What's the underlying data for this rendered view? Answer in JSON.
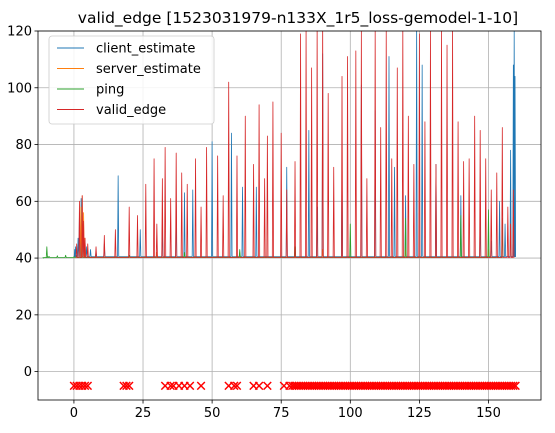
{
  "chart_data": {
    "type": "line",
    "title": "valid_edge [1523031979-n133X_1r5_loss-gemodel-1-10]",
    "xlabel": "",
    "ylabel": "",
    "xlim": [
      -13,
      169
    ],
    "ylim": [
      -10,
      120
    ],
    "x_ticks": [
      0,
      25,
      50,
      75,
      100,
      125,
      150
    ],
    "y_ticks": [
      0,
      20,
      40,
      60,
      80,
      100,
      120
    ],
    "x_tick_labels": [
      "0",
      "25",
      "50",
      "75",
      "100",
      "125",
      "150"
    ],
    "y_tick_labels": [
      "0",
      "20",
      "40",
      "60",
      "80",
      "100",
      "120"
    ],
    "grid": true,
    "legend_position": "top-left",
    "series": [
      {
        "name": "client_estimate",
        "color": "#1f77b4",
        "baseline": 40.5,
        "x": [
          0.3,
          0.6,
          1.0,
          1.5,
          2.0,
          2.6,
          3.1,
          3.6,
          4.5,
          6,
          8,
          11,
          16,
          24,
          32,
          37,
          40,
          43,
          50,
          57,
          61,
          66,
          77,
          85,
          88,
          90,
          97,
          104,
          109,
          114,
          116,
          120,
          124,
          126,
          131,
          140,
          147,
          151,
          154,
          156,
          158,
          159,
          159.3,
          159.6
        ],
        "y": [
          43,
          44,
          41,
          47,
          56,
          61,
          52,
          46,
          44,
          43,
          42,
          45,
          69,
          50,
          52,
          59,
          63,
          64,
          81,
          84,
          65,
          65,
          72,
          85,
          58,
          112,
          68,
          101,
          92,
          111,
          72,
          62,
          124,
          108,
          73,
          62,
          55,
          46,
          60,
          52,
          78,
          108,
          120,
          104
        ]
      },
      {
        "name": "server_estimate",
        "color": "#ff7f0e",
        "baseline": 40.3,
        "x": [
          2.5,
          3,
          3.5,
          4,
          30,
          60,
          90,
          120,
          150
        ],
        "y": [
          58,
          62,
          56,
          47,
          42,
          42,
          43,
          44,
          43
        ]
      },
      {
        "name": "ping",
        "color": "#2ca02c",
        "baseline": 40.2,
        "x": [
          -11,
          -10,
          -9.8,
          -9.5,
          -9,
          -6,
          -3,
          0,
          1,
          2,
          3,
          20,
          40,
          60,
          80,
          100,
          120,
          140,
          150,
          155
        ],
        "y": [
          40,
          40.3,
          44,
          40.5,
          40.6,
          40.8,
          41,
          40.5,
          40.6,
          40.3,
          40.4,
          41,
          42,
          43,
          44,
          52,
          54,
          55,
          57,
          54
        ]
      },
      {
        "name": "valid_edge",
        "color": "#d62728",
        "baseline": 40.2,
        "x": [
          1,
          2,
          3,
          3.5,
          4,
          5,
          8,
          11,
          15,
          20,
          23,
          26,
          29,
          30,
          32,
          33,
          35,
          37,
          39,
          41,
          44,
          46,
          48,
          52,
          54,
          56,
          59,
          62,
          65,
          67,
          69,
          70,
          72,
          75,
          77,
          80,
          82,
          84,
          86,
          88,
          90,
          92,
          94,
          97,
          99,
          102,
          104,
          106,
          109,
          111,
          113,
          115,
          117,
          119,
          121,
          123,
          125,
          127,
          129,
          131,
          133,
          135,
          137,
          139,
          141,
          143,
          145,
          147,
          149,
          151,
          153,
          155,
          157,
          158,
          159
        ],
        "y": [
          45,
          60,
          62,
          53,
          47,
          45,
          44,
          48,
          50,
          58,
          55,
          66,
          75,
          52,
          68,
          79,
          61,
          77,
          70,
          66,
          75,
          58,
          79,
          76,
          62,
          102,
          76,
          90,
          73,
          94,
          68,
          83,
          95,
          84,
          64,
          74,
          119,
          121,
          107,
          122,
          124,
          98,
          72,
          104,
          111,
          113,
          120,
          68,
          120,
          86,
          120,
          75,
          107,
          122,
          90,
          73,
          119,
          88,
          120,
          73,
          121,
          115,
          122,
          88,
          74,
          75,
          90,
          85,
          75,
          64,
          70,
          86,
          58,
          52,
          64
        ]
      },
      {
        "name": "",
        "color": "#ff0000",
        "marker": "x",
        "y_value": -5,
        "x": [
          0,
          1,
          2,
          3,
          4,
          5,
          18,
          19,
          20,
          33,
          35,
          36,
          38,
          40,
          42,
          46,
          56,
          58,
          59,
          65,
          67,
          70,
          76,
          78
        ]
      }
    ],
    "dense_x_markers": {
      "color": "#ff0000",
      "y_value": -5,
      "from": 79,
      "to": 160
    }
  }
}
